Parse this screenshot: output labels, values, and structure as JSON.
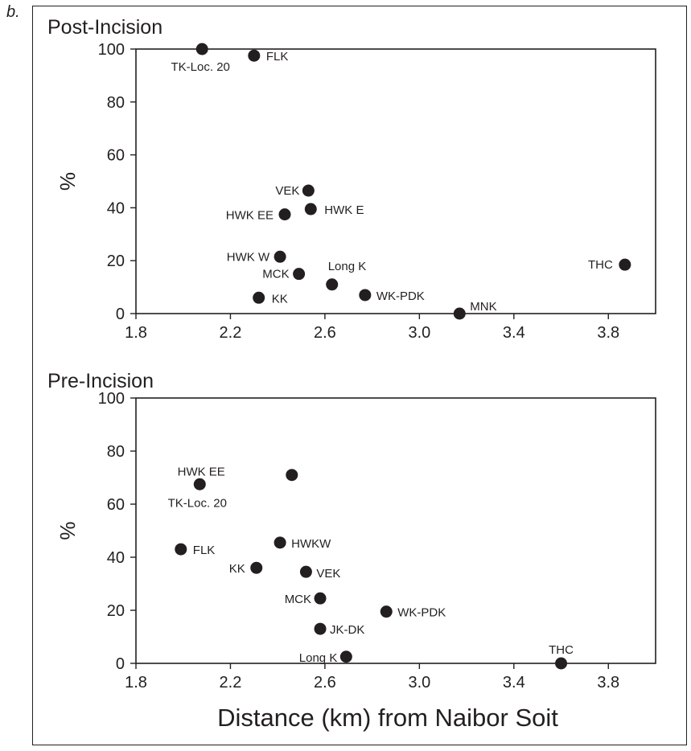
{
  "figure": {
    "panel_letter": "b.",
    "x_axis_label": "Distance (km) from Naibor Soit"
  },
  "chart_data": [
    {
      "type": "scatter",
      "title": "Post-Incision",
      "ylabel": "%",
      "xlabel": "",
      "xlim": [
        1.8,
        4.0
      ],
      "ylim": [
        0,
        100
      ],
      "x_ticks": [
        "1.8",
        "2.2",
        "2.6",
        "3.0",
        "3.4",
        "3.8"
      ],
      "y_ticks": [
        "0",
        "20",
        "40",
        "60",
        "80",
        "100"
      ],
      "grid": false,
      "points": [
        {
          "label": "TK-Loc. 20",
          "x": 2.08,
          "y": 100
        },
        {
          "label": "FLK",
          "x": 2.3,
          "y": 97.5
        },
        {
          "label": "VEK",
          "x": 2.53,
          "y": 46.5
        },
        {
          "label": "HWK E",
          "x": 2.54,
          "y": 39.5
        },
        {
          "label": "HWK EE",
          "x": 2.43,
          "y": 37.5
        },
        {
          "label": "HWK W",
          "x": 2.41,
          "y": 21.5
        },
        {
          "label": "MCK",
          "x": 2.49,
          "y": 15
        },
        {
          "label": "Long K",
          "x": 2.63,
          "y": 11
        },
        {
          "label": "KK",
          "x": 2.32,
          "y": 6
        },
        {
          "label": "WK-PDK",
          "x": 2.77,
          "y": 7
        },
        {
          "label": "MNK",
          "x": 3.17,
          "y": 0
        },
        {
          "label": "THC",
          "x": 3.87,
          "y": 18.5
        }
      ]
    },
    {
      "type": "scatter",
      "title": "Pre-Incision",
      "ylabel": "%",
      "xlabel": "Distance (km) from Naibor Soit",
      "xlim": [
        1.8,
        4.0
      ],
      "ylim": [
        0,
        100
      ],
      "x_ticks": [
        "1.8",
        "2.2",
        "2.6",
        "3.0",
        "3.4",
        "3.8"
      ],
      "y_ticks": [
        "0",
        "20",
        "40",
        "60",
        "80",
        "100"
      ],
      "grid": false,
      "points": [
        {
          "label": "HWK EE",
          "x": 2.46,
          "y": 71
        },
        {
          "label": "TK-Loc. 20",
          "x": 2.07,
          "y": 67.5
        },
        {
          "label": "FLK",
          "x": 1.99,
          "y": 43
        },
        {
          "label": "HWKW",
          "x": 2.41,
          "y": 45.5
        },
        {
          "label": "KK",
          "x": 2.31,
          "y": 36
        },
        {
          "label": "VEK",
          "x": 2.52,
          "y": 34.5
        },
        {
          "label": "MCK",
          "x": 2.58,
          "y": 24.5
        },
        {
          "label": "WK-PDK",
          "x": 2.86,
          "y": 19.5
        },
        {
          "label": "JK-DK",
          "x": 2.58,
          "y": 13
        },
        {
          "label": "Long K",
          "x": 2.69,
          "y": 2.5
        },
        {
          "label": "THC",
          "x": 3.6,
          "y": 0
        }
      ]
    }
  ]
}
